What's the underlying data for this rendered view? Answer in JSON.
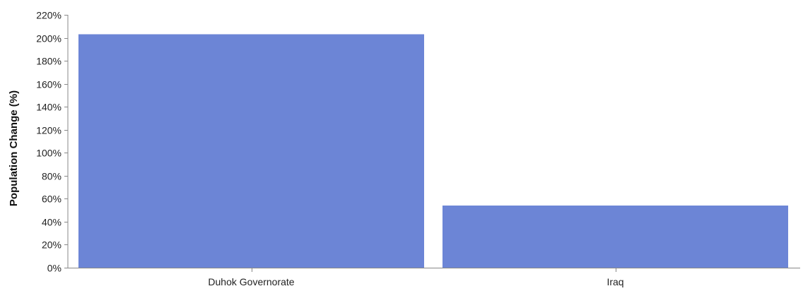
{
  "chart_data": {
    "type": "bar",
    "categories": [
      "Duhok Governorate",
      "Iraq"
    ],
    "values": [
      203,
      54
    ],
    "ylabel": "Population Change (%)",
    "xlabel": "",
    "ylim": [
      0,
      220
    ],
    "y_ticks": [
      "0%",
      "20%",
      "40%",
      "60%",
      "80%",
      "100%",
      "120%",
      "140%",
      "160%",
      "180%",
      "200%",
      "220%"
    ],
    "bar_color": "#6c85d6",
    "grid": false,
    "legend": "none"
  }
}
